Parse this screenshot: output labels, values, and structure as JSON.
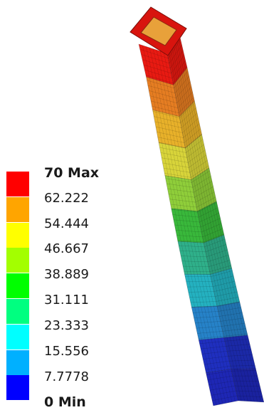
{
  "legend": {
    "entries": [
      {
        "label": "70 Max",
        "bold": true,
        "color": "#ff0000"
      },
      {
        "label": "62.222",
        "bold": false,
        "color": "#ffa500"
      },
      {
        "label": "54.444",
        "bold": false,
        "color": "#ffff00"
      },
      {
        "label": "46.667",
        "bold": false,
        "color": "#a3ff00"
      },
      {
        "label": "38.889",
        "bold": false,
        "color": "#00ff00"
      },
      {
        "label": "31.111",
        "bold": false,
        "color": "#00ff80"
      },
      {
        "label": "23.333",
        "bold": false,
        "color": "#00ffff"
      },
      {
        "label": "15.556",
        "bold": false,
        "color": "#00b0ff"
      },
      {
        "label": "7.7778",
        "bold": false,
        "color": "#0050ff"
      },
      {
        "label": "0 Min",
        "bold": true,
        "color": "#0000ff"
      }
    ],
    "bands": [
      "#ff0000",
      "#ffa500",
      "#ffff00",
      "#a3ff00",
      "#00ff00",
      "#00ff80",
      "#00ffff",
      "#00b0ff",
      "#0000ff"
    ]
  },
  "model": {
    "description_icon": "bent-square-tube-contour",
    "band_colors": [
      "#e81a12",
      "#e57d22",
      "#e8b12a",
      "#d8d43a",
      "#8fce3a",
      "#39b83b",
      "#2fb08a",
      "#24b1c0",
      "#2682c8",
      "#1f2fbf",
      "#1e27b5"
    ]
  }
}
